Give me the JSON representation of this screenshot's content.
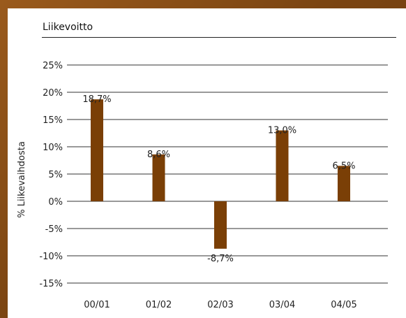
{
  "chart_data": {
    "type": "bar",
    "title": "Liikevoitto",
    "xlabel": "",
    "ylabel": "% Liikevaihdosta",
    "categories": [
      "00/01",
      "01/02",
      "02/03",
      "03/04",
      "04/05"
    ],
    "values": [
      18.7,
      8.6,
      -8.7,
      13.0,
      6.5
    ],
    "data_labels": [
      "18,7%",
      "8,6%",
      "-8,7%",
      "13,0%",
      "6,5%"
    ],
    "yticks": [
      25,
      20,
      15,
      10,
      5,
      0,
      -5,
      -10,
      -15
    ],
    "ytick_labels": [
      "25%",
      "20%",
      "15%",
      "10%",
      "5%",
      "0%",
      "-5%",
      "-10%",
      "-15%"
    ],
    "ylim": [
      -15,
      25
    ],
    "grid": true,
    "legend": "none",
    "bar_color": "#7a3f06"
  }
}
